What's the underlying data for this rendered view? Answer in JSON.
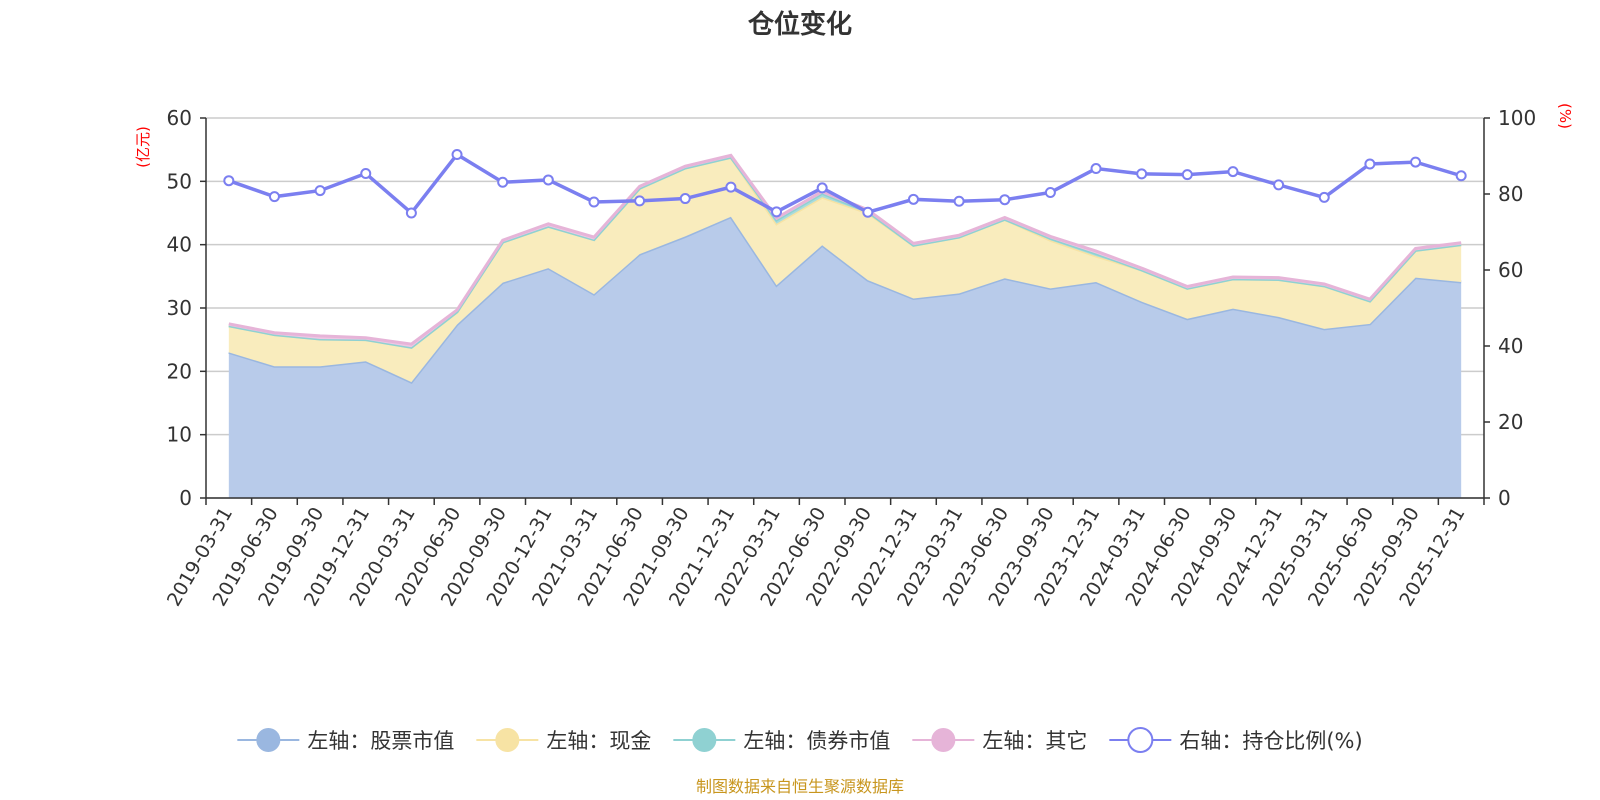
{
  "chart_data": {
    "type": "area",
    "title": "仓位变化",
    "left_unit": "(亿元)",
    "right_unit": "(%)",
    "categories": [
      "2019-03-31",
      "2019-06-30",
      "2019-09-30",
      "2019-12-31",
      "2020-03-31",
      "2020-06-30",
      "2020-09-30",
      "2020-12-31",
      "2021-03-31",
      "2021-06-30",
      "2021-09-30",
      "2021-12-31",
      "2022-03-31",
      "2022-06-30",
      "2022-09-30",
      "2022-12-31",
      "2023-03-31",
      "2023-06-30",
      "2023-09-30",
      "2023-12-31",
      "2024-03-31",
      "2024-06-30",
      "2024-09-30",
      "2024-12-31",
      "2025-03-31",
      "2025-06-30",
      "2025-09-30",
      "2025-12-31"
    ],
    "left_axis": {
      "min": 0,
      "max": 60,
      "ticks": [
        0,
        10,
        20,
        30,
        40,
        50,
        60
      ]
    },
    "right_axis": {
      "min": 0,
      "max": 100,
      "ticks": [
        0,
        20,
        40,
        60,
        80,
        100
      ]
    },
    "series": [
      {
        "name": "左轴：股票市值",
        "axis": "left",
        "kind": "stack",
        "color": "#9ab7e0",
        "fill": "#b8cbea",
        "values": [
          23.0,
          20.8,
          20.8,
          21.6,
          18.3,
          27.4,
          34.0,
          36.3,
          32.2,
          38.5,
          41.3,
          44.4,
          33.6,
          39.9,
          34.4,
          31.5,
          32.3,
          34.7,
          33.1,
          34.1,
          31.0,
          28.3,
          29.9,
          28.6,
          26.7,
          27.5,
          34.8,
          34.1
        ]
      },
      {
        "name": "左轴：现金",
        "axis": "left",
        "kind": "stack",
        "color": "#f7e3a4",
        "fill": "#f9ecbd",
        "values": [
          4.2,
          5.0,
          4.3,
          3.4,
          5.5,
          2.0,
          6.4,
          6.6,
          8.6,
          10.4,
          10.8,
          9.4,
          9.7,
          7.6,
          10.6,
          8.4,
          8.9,
          9.3,
          7.6,
          4.1,
          5.0,
          4.8,
          4.7,
          5.9,
          6.8,
          3.6,
          4.3,
          5.9
        ]
      },
      {
        "name": "左轴：债券市值",
        "axis": "left",
        "kind": "stack",
        "color": "#8fd1d2",
        "fill": "#a9dcdc",
        "values": [
          0,
          0,
          0,
          0,
          0,
          0,
          0,
          0,
          0,
          0,
          0,
          0,
          0.6,
          0.6,
          0.2,
          0,
          0,
          0,
          0.3,
          0.4,
          0,
          0,
          0,
          0,
          0,
          0,
          0,
          0
        ]
      },
      {
        "name": "左轴：其它",
        "axis": "left",
        "kind": "stack",
        "color": "#e6b4d8",
        "fill": "#eec7e4",
        "values": [
          0.3,
          0.3,
          0.5,
          0.3,
          0.5,
          0.3,
          0.3,
          0.4,
          0.4,
          0.3,
          0.3,
          0.3,
          0.3,
          0.3,
          0.3,
          0.3,
          0.3,
          0.3,
          0.3,
          0.4,
          0.3,
          0.3,
          0.3,
          0.3,
          0.3,
          0.3,
          0.3,
          0.3
        ]
      },
      {
        "name": "右轴：持仓比例(%)",
        "axis": "right",
        "kind": "line",
        "color": "#7b7ff0",
        "values": [
          83.5,
          79.3,
          80.9,
          85.4,
          75.0,
          90.4,
          83.1,
          83.7,
          77.9,
          78.2,
          78.8,
          81.8,
          75.3,
          81.6,
          75.2,
          78.6,
          78.1,
          78.5,
          80.4,
          86.7,
          85.3,
          85.1,
          85.9,
          82.4,
          79.1,
          87.9,
          88.4,
          84.8
        ]
      }
    ]
  },
  "source_note": "制图数据来自恒生聚源数据库"
}
